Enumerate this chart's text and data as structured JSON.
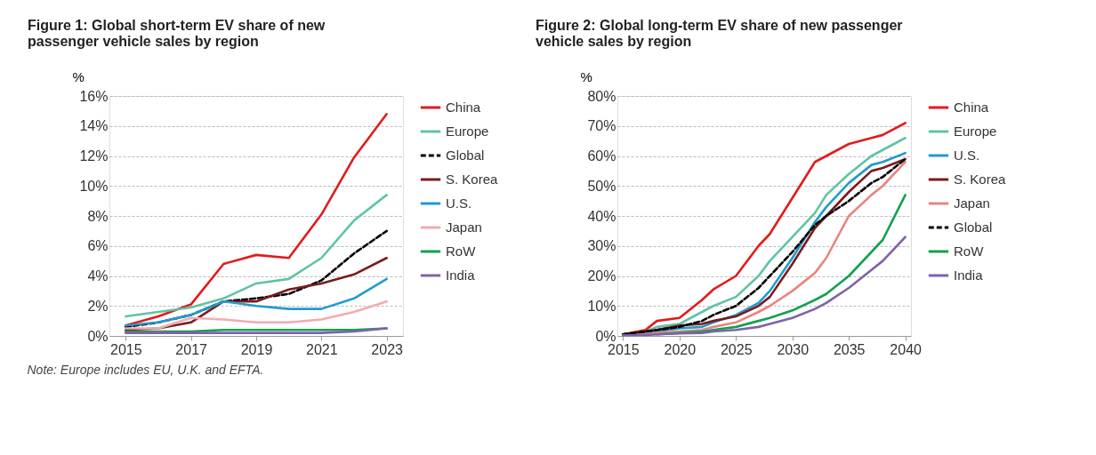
{
  "chart_data": [
    {
      "type": "line",
      "title": "Figure 1: Global short-term EV share of new passenger vehicle sales by region",
      "ylabel": "%",
      "legend": "right",
      "grid": "y",
      "x": [
        2015,
        2016,
        2017,
        2018,
        2019,
        2020,
        2021,
        2022,
        2023
      ],
      "xlim": [
        2014.5,
        2023.5
      ],
      "xticks": [
        2015,
        2017,
        2019,
        2021,
        2023
      ],
      "ylim": [
        0,
        16
      ],
      "yticks": [
        {
          "value": 0,
          "label": "0%"
        },
        {
          "value": 2,
          "label": "2%"
        },
        {
          "value": 4,
          "label": "4%"
        },
        {
          "value": 6,
          "label": "6%"
        },
        {
          "value": 8,
          "label": "8%"
        },
        {
          "value": 10,
          "label": "10%"
        },
        {
          "value": 12,
          "label": "12%"
        },
        {
          "value": 14,
          "label": "14%"
        },
        {
          "value": 16,
          "label": "16%"
        }
      ],
      "series": [
        {
          "name": "China",
          "color": "#e31a1c",
          "values": [
            0.7,
            1.3,
            2.1,
            4.8,
            5.4,
            5.2,
            8.1,
            11.9,
            14.8
          ]
        },
        {
          "name": "Europe",
          "color": "#5fc3a5",
          "values": [
            1.3,
            1.6,
            1.9,
            2.5,
            3.5,
            3.8,
            5.2,
            7.7,
            9.4
          ]
        },
        {
          "name": "Global",
          "color": "#000000",
          "line_style": "dashed",
          "values": [
            0.6,
            0.9,
            1.4,
            2.3,
            2.5,
            2.8,
            3.7,
            5.5,
            7.0
          ]
        },
        {
          "name": "S. Korea",
          "color": "#7a1c1c",
          "values": [
            0.4,
            0.5,
            0.9,
            2.3,
            2.3,
            3.1,
            3.5,
            4.1,
            5.2
          ]
        },
        {
          "name": "U.S.",
          "color": "#1e9cd0",
          "values": [
            0.7,
            0.9,
            1.4,
            2.3,
            2.0,
            1.8,
            1.8,
            2.5,
            3.8
          ]
        },
        {
          "name": "Japan",
          "color": "#f4aab0",
          "values": [
            0.5,
            0.5,
            1.2,
            1.1,
            0.9,
            0.9,
            1.1,
            1.6,
            2.3
          ]
        },
        {
          "name": "RoW",
          "color": "#12a150",
          "values": [
            0.3,
            0.3,
            0.3,
            0.4,
            0.4,
            0.4,
            0.4,
            0.4,
            0.5
          ]
        },
        {
          "name": "India",
          "color": "#7e62a8",
          "values": [
            0.2,
            0.2,
            0.2,
            0.2,
            0.2,
            0.2,
            0.2,
            0.3,
            0.5
          ]
        }
      ],
      "annotations": [
        "Note: Europe includes EU, U.K. and EFTA."
      ]
    },
    {
      "type": "line",
      "title": "Figure 2: Global long-term EV share of new passenger vehicle sales by region",
      "ylabel": "%",
      "legend": "right",
      "grid": "y",
      "x": [
        2015,
        2017,
        2018,
        2020,
        2022,
        2023,
        2025,
        2027,
        2028,
        2030,
        2032,
        2033,
        2035,
        2037,
        2038,
        2040
      ],
      "xlim": [
        2014.5,
        2040.5
      ],
      "xticks": [
        2015,
        2020,
        2025,
        2030,
        2035,
        2040
      ],
      "ylim": [
        0,
        80
      ],
      "yticks": [
        {
          "value": 0,
          "label": "0%"
        },
        {
          "value": 10,
          "label": "10%"
        },
        {
          "value": 20,
          "label": "20%"
        },
        {
          "value": 30,
          "label": "30%"
        },
        {
          "value": 40,
          "label": "40%"
        },
        {
          "value": 50,
          "label": "50%"
        },
        {
          "value": 60,
          "label": "60%"
        },
        {
          "value": 70,
          "label": "70%"
        },
        {
          "value": 80,
          "label": "80%"
        }
      ],
      "series": [
        {
          "name": "China",
          "color": "#e31a1c",
          "values": [
            0.5,
            2,
            5,
            6,
            12,
            15.5,
            20,
            30,
            34,
            46,
            58,
            60,
            64,
            66,
            67,
            71
          ]
        },
        {
          "name": "Europe",
          "color": "#5fc3a5",
          "values": [
            0.5,
            1.5,
            3,
            4,
            8,
            10,
            13,
            20,
            25,
            33,
            41,
            47,
            54,
            60,
            62,
            66
          ]
        },
        {
          "name": "U.S.",
          "color": "#1e9cd0",
          "values": [
            0.5,
            1,
            1.5,
            2.5,
            3,
            4.5,
            7,
            11,
            15,
            26,
            38,
            43,
            51,
            57,
            58,
            61
          ]
        },
        {
          "name": "S. Korea",
          "color": "#7a1c1c",
          "values": [
            0.5,
            1.5,
            2,
            3.5,
            4,
            5,
            6.5,
            10,
            13,
            24,
            36,
            40,
            48,
            55,
            56,
            59
          ]
        },
        {
          "name": "Japan",
          "color": "#e8857e",
          "values": [
            0.3,
            0.5,
            1,
            1.5,
            2,
            3,
            4.5,
            8,
            10,
            15,
            21,
            26,
            40,
            47,
            50,
            58
          ]
        },
        {
          "name": "Global",
          "color": "#000000",
          "line_style": "dashed",
          "values": [
            0.5,
            1.5,
            2,
            3,
            5,
            7,
            10,
            16,
            20,
            28,
            37,
            40,
            45,
            51,
            53,
            59
          ]
        },
        {
          "name": "RoW",
          "color": "#12a150",
          "values": [
            null,
            null,
            0.5,
            1,
            1.5,
            2,
            3,
            5,
            6,
            8.5,
            12,
            14,
            20,
            28,
            32,
            47
          ]
        },
        {
          "name": "India",
          "color": "#7e62a8",
          "values": [
            0.2,
            0.3,
            0.5,
            0.8,
            1,
            1.5,
            2,
            3,
            4,
            6,
            9,
            11,
            16,
            22,
            25,
            33
          ]
        }
      ]
    }
  ]
}
